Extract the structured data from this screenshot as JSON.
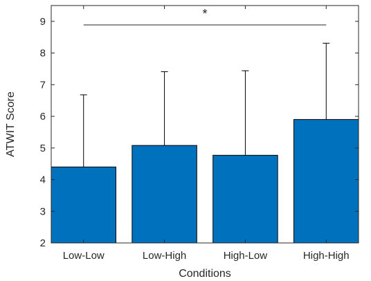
{
  "chart_data": {
    "type": "bar",
    "categories": [
      "Low-Low",
      "Low-High",
      "High-Low",
      "High-High"
    ],
    "values": [
      4.4,
      5.08,
      4.77,
      5.9
    ],
    "error_upper": [
      6.68,
      7.41,
      7.44,
      8.31
    ],
    "xlabel": "Conditions",
    "ylabel": "ATWIT Score",
    "ylim": [
      2,
      9.5
    ],
    "yticks": [
      2,
      3,
      4,
      5,
      6,
      7,
      8,
      9
    ],
    "grid": false,
    "bar_color": "#0072BD",
    "significance": {
      "from": "Low-Low",
      "to": "High-High",
      "label": "*"
    }
  }
}
